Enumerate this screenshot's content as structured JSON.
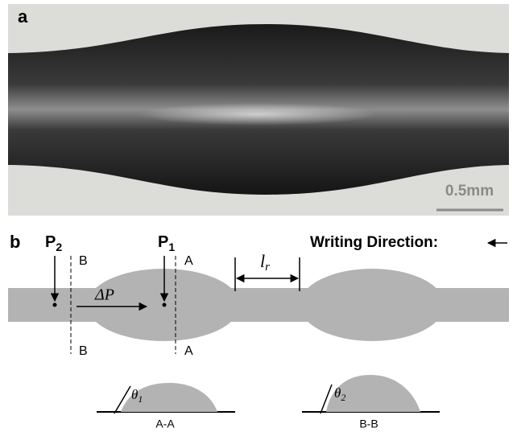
{
  "panel_a": {
    "label": "a",
    "scale_bar": "0.5mm"
  },
  "panel_b": {
    "label": "b",
    "writing_direction": "Writing Direction:",
    "p2": {
      "base": "P",
      "sub": "2"
    },
    "p1": {
      "base": "P",
      "sub": "1"
    },
    "section_b_top": "B",
    "section_b_bottom": "B",
    "section_a_top": "A",
    "section_a_bottom": "A",
    "pressure_difference": "ΔP",
    "ridge_length": {
      "base": "l",
      "sub": "r"
    },
    "cross_sections": [
      {
        "angle": {
          "base": "θ",
          "sub": "1"
        },
        "caption": "A-A"
      },
      {
        "angle": {
          "base": "θ",
          "sub": "2"
        },
        "caption": "B-B"
      }
    ]
  }
}
